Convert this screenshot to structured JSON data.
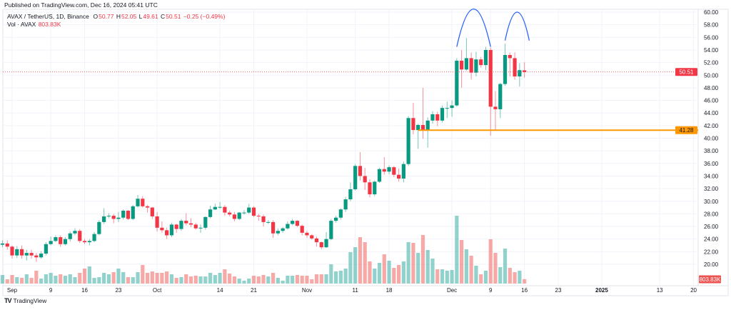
{
  "header": {
    "published": "Published on TradingView.com, Dec 16, 2024 05:41 UTC"
  },
  "legend": {
    "symbol": "AVAX / TetherUS, 1D, Binance",
    "o_label": "O",
    "o": "50.77",
    "h_label": "H",
    "h": "52.05",
    "l_label": "L",
    "l": "49.61",
    "c_label": "C",
    "c": "50.51",
    "change": "−0.25 (−0.49%)",
    "vol_label": "Vol · AVAX",
    "vol": "803.83K"
  },
  "footer": {
    "brand": "TradingView",
    "logo_glyph": "TV"
  },
  "colors": {
    "up": "#089981",
    "down": "#f23645",
    "vol_up": "#26a69a",
    "vol_down": "#ef5350",
    "support": "#ff9800",
    "arc": "#2962ff",
    "last_price": "#f23645"
  },
  "chart_data": {
    "type": "candlestick",
    "title": "",
    "interval": "1D",
    "first_date": "2024-08-30",
    "ylim": [
      19,
      60
    ],
    "y_ticks": [
      "20.00",
      "22.00",
      "24.00",
      "26.00",
      "28.00",
      "30.00",
      "32.00",
      "34.00",
      "36.00",
      "38.00",
      "40.00",
      "42.00",
      "44.00",
      "46.00",
      "48.00",
      "50.00",
      "52.00",
      "54.00",
      "56.00",
      "58.00",
      "60.00"
    ],
    "x_ticks": [
      {
        "label": "Sep",
        "date": "2024-09-01"
      },
      {
        "label": "9",
        "date": "2024-09-09"
      },
      {
        "label": "16",
        "date": "2024-09-16"
      },
      {
        "label": "23",
        "date": "2024-09-23"
      },
      {
        "label": "Oct",
        "date": "2024-10-01"
      },
      {
        "label": "14",
        "date": "2024-10-14"
      },
      {
        "label": "21",
        "date": "2024-10-21"
      },
      {
        "label": "Nov",
        "date": "2024-11-01"
      },
      {
        "label": "11",
        "date": "2024-11-11"
      },
      {
        "label": "18",
        "date": "2024-11-18"
      },
      {
        "label": "Dec",
        "date": "2024-12-01"
      },
      {
        "label": "9",
        "date": "2024-12-09"
      },
      {
        "label": "16",
        "date": "2024-12-16"
      },
      {
        "label": "23",
        "date": "2024-12-23"
      },
      {
        "label": "2025",
        "date": "2025-01-01"
      },
      {
        "label": "13",
        "date": "2025-01-13"
      },
      {
        "label": "20",
        "date": "2025-01-20"
      }
    ],
    "x_end_date": "2025-01-22",
    "open": [
      23.1,
      23.3,
      22.8,
      21.4,
      22.4,
      21.4,
      21.8,
      21.4,
      21.1,
      21.7,
      23.2,
      23.7,
      24.3,
      23.2,
      24.0,
      24.9,
      25.3,
      23.7,
      23.5,
      23.7,
      24.8,
      26.7,
      27.6,
      27.7,
      27.2,
      27.4,
      28.5,
      27.2,
      29.2,
      30.4,
      29.2,
      29.0,
      27.6,
      25.8,
      25.4,
      24.6,
      26.3,
      25.6,
      26.9,
      26.5,
      26.3,
      25.7,
      25.8,
      27.5,
      28.7,
      29.1,
      29.1,
      28.2,
      27.9,
      27.2,
      28.2,
      28.2,
      29.0,
      27.7,
      27.6,
      26.7,
      26.7,
      24.9,
      25.3,
      25.7,
      26.4,
      26.9,
      26.1,
      25.0,
      24.6,
      24.1,
      23.5,
      22.7,
      24.0,
      26.9,
      27.4,
      28.7,
      30.3,
      31.9,
      35.6,
      34.0,
      33.0,
      31.1,
      33.1,
      35.1,
      34.7,
      35.4,
      34.2,
      33.6,
      35.9,
      43.2,
      41.3,
      42.1,
      41.3,
      42.8,
      43.8,
      42.8,
      44.8,
      44.8,
      45.2,
      52.3,
      50.9,
      52.7,
      50.4,
      52.5,
      51.6,
      54.0,
      45.0,
      44.6,
      48.6,
      53.2,
      52.7,
      49.8,
      50.77
    ],
    "high": [
      23.8,
      23.8,
      23.0,
      22.9,
      23.0,
      22.3,
      22.3,
      21.8,
      22.1,
      23.5,
      24.4,
      24.6,
      24.6,
      24.3,
      25.2,
      25.7,
      25.6,
      24.0,
      24.0,
      25.1,
      27.0,
      28.9,
      28.1,
      28.0,
      28.3,
      28.7,
      28.6,
      29.4,
      31.0,
      30.8,
      29.4,
      29.1,
      28.3,
      26.8,
      25.8,
      26.6,
      26.4,
      27.2,
      28.1,
      27.3,
      26.6,
      26.3,
      27.6,
      29.3,
      29.6,
      29.9,
      29.4,
      28.5,
      28.3,
      28.3,
      28.6,
      29.6,
      29.2,
      28.0,
      27.9,
      27.0,
      27.0,
      25.7,
      25.9,
      26.8,
      27.2,
      27.0,
      26.3,
      25.3,
      24.8,
      24.4,
      23.6,
      25.1,
      27.2,
      27.7,
      28.9,
      30.7,
      33.0,
      35.9,
      37.8,
      35.3,
      33.5,
      33.3,
      35.3,
      37.0,
      35.7,
      35.6,
      35.2,
      36.3,
      43.5,
      45.6,
      42.3,
      48.0,
      43.3,
      44.3,
      44.2,
      45.2,
      45.8,
      46.0,
      52.7,
      54.0,
      55.9,
      53.6,
      53.7,
      52.9,
      54.5,
      54.4,
      47.5,
      48.8,
      55.0,
      53.6,
      53.6,
      51.9,
      52.05
    ],
    "low": [
      22.7,
      22.3,
      20.9,
      21.0,
      20.9,
      20.6,
      20.9,
      20.4,
      20.9,
      21.4,
      23.0,
      23.5,
      22.8,
      23.0,
      23.6,
      24.6,
      23.4,
      23.2,
      23.0,
      23.5,
      24.6,
      26.4,
      27.3,
      26.5,
      26.7,
      27.1,
      27.0,
      27.0,
      29.0,
      29.0,
      28.2,
      27.2,
      25.2,
      25.0,
      24.0,
      24.3,
      25.0,
      25.3,
      26.2,
      25.9,
      25.5,
      25.0,
      25.5,
      27.3,
      28.6,
      28.8,
      27.7,
      27.6,
      26.8,
      27.0,
      27.9,
      28.0,
      27.5,
      26.9,
      26.0,
      26.4,
      24.2,
      24.6,
      25.0,
      25.5,
      26.2,
      25.9,
      24.6,
      24.2,
      23.9,
      22.8,
      22.4,
      22.6,
      23.8,
      26.6,
      27.1,
      28.3,
      30.0,
      31.7,
      33.3,
      31.8,
      30.6,
      30.8,
      32.9,
      34.2,
      34.3,
      33.8,
      33.1,
      33.0,
      35.6,
      40.6,
      38.3,
      39.9,
      38.5,
      42.3,
      41.9,
      42.5,
      43.2,
      43.4,
      45.0,
      48.0,
      50.7,
      49.3,
      49.8,
      51.2,
      50.8,
      40.4,
      41.2,
      43.2,
      48.3,
      49.8,
      49.3,
      48.2,
      49.61
    ],
    "close": [
      23.3,
      22.8,
      21.4,
      22.4,
      21.4,
      21.8,
      21.4,
      21.1,
      21.7,
      23.2,
      23.7,
      24.3,
      23.2,
      24.0,
      24.9,
      25.3,
      23.7,
      23.5,
      23.7,
      24.8,
      26.7,
      27.6,
      27.7,
      27.2,
      27.4,
      28.5,
      27.2,
      29.2,
      30.4,
      29.2,
      29.0,
      27.6,
      25.8,
      25.4,
      24.6,
      26.3,
      25.6,
      26.9,
      26.5,
      26.3,
      25.7,
      25.8,
      27.5,
      28.7,
      29.1,
      29.1,
      28.2,
      27.9,
      27.2,
      28.2,
      28.2,
      29.0,
      27.7,
      27.6,
      26.7,
      26.7,
      24.9,
      25.3,
      25.7,
      26.4,
      26.9,
      26.1,
      25.0,
      24.6,
      24.1,
      23.5,
      22.7,
      24.0,
      26.9,
      27.4,
      28.7,
      30.3,
      31.9,
      35.6,
      34.0,
      33.0,
      31.1,
      33.1,
      35.1,
      34.7,
      35.4,
      34.2,
      33.6,
      35.9,
      43.2,
      41.3,
      42.1,
      41.3,
      42.8,
      43.8,
      42.8,
      44.8,
      44.8,
      45.2,
      52.3,
      50.9,
      52.7,
      50.4,
      52.5,
      51.6,
      54.0,
      45.0,
      44.6,
      48.6,
      53.2,
      52.7,
      49.8,
      50.8,
      50.51
    ],
    "volume_millions": [
      1.56,
      0.78,
      1.56,
      1.17,
      1.04,
      1.69,
      1.04,
      2.34,
      0.91,
      1.69,
      1.95,
      1.43,
      1.69,
      1.43,
      1.69,
      1.17,
      1.95,
      2.73,
      3.12,
      1.04,
      1.17,
      1.95,
      1.69,
      2.08,
      2.73,
      2.08,
      1.17,
      1.17,
      2.08,
      3.38,
      1.95,
      2.21,
      1.95,
      1.95,
      2.21,
      1.69,
      1.04,
      1.17,
      1.69,
      1.3,
      1.43,
      1.3,
      1.3,
      1.95,
      1.56,
      1.95,
      2.6,
      1.82,
      1.3,
      0.91,
      0.52,
      0.91,
      1.43,
      1.3,
      1.56,
      1.3,
      1.95,
      1.04,
      0.52,
      1.43,
      1.43,
      1.56,
      1.43,
      1.43,
      0.78,
      1.69,
      1.69,
      1.69,
      3.51,
      2.21,
      2.34,
      2.73,
      5.72,
      6.63,
      8.45,
      7.54,
      4.03,
      2.73,
      3.77,
      5.33,
      4.16,
      2.86,
      3.38,
      4.03,
      7.54,
      7.41,
      5.59,
      8.84,
      6.11,
      4.55,
      2.6,
      2.6,
      2.34,
      2.47,
      12.35,
      7.93,
      6.24,
      5.07,
      3.25,
      1.69,
      2.34,
      8.06,
      5.59,
      2.99,
      6.37,
      2.86,
      2.08,
      2.34,
      0.8
    ],
    "last_price": {
      "value": 50.51,
      "label": "50.51"
    },
    "support_line": {
      "value": 41.28,
      "label": "41.28",
      "from_date": "2024-11-24"
    },
    "volume_label": "803.83K",
    "annotations": [
      {
        "type": "arc",
        "from_date": "2024-12-02",
        "to_date": "2024-12-09",
        "from_price": 54.5,
        "peak_price": 58.5
      },
      {
        "type": "arc",
        "from_date": "2024-12-12",
        "to_date": "2024-12-17",
        "from_price": 55.5,
        "peak_price": 58.5
      }
    ],
    "grid": true
  }
}
